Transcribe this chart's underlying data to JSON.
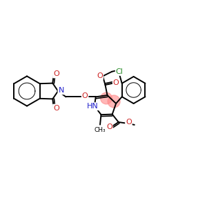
{
  "background": "#ffffff",
  "lw": 1.4,
  "figsize": [
    3.0,
    3.0
  ],
  "dpi": 100,
  "colors": {
    "N": "#2222cc",
    "O": "#cc2222",
    "Cl": "#228822",
    "C": "#000000",
    "highlight": "#ff8888"
  },
  "xlim": [
    0,
    10
  ],
  "ylim": [
    0,
    10
  ]
}
